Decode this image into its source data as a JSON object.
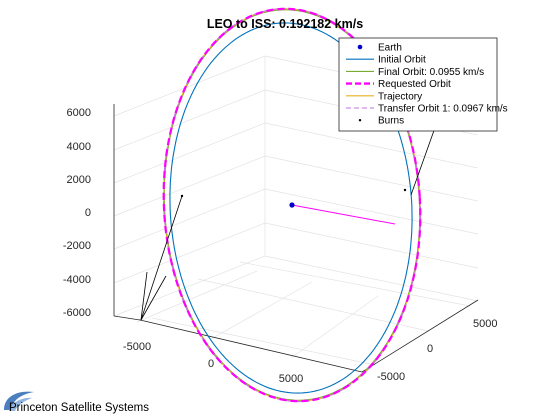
{
  "chart_data": {
    "type": "line",
    "title": "LEO to ISS: 0.192182 km/s",
    "xlim": [
      -8000,
      8000
    ],
    "ylim": [
      -7000,
      7000
    ],
    "zlim": [
      -7000,
      7000
    ],
    "grid": true,
    "box": true,
    "legend_placement": "top-right",
    "x_ticks": [
      "-5000",
      "0",
      "5000"
    ],
    "y_ticks": [
      "-5000",
      "0",
      "5000"
    ],
    "z_ticks": [
      "-6000",
      "-4000",
      "-2000",
      "0",
      "2000",
      "4000",
      "6000"
    ],
    "legend": [
      {
        "label": "Earth",
        "color": "#0000cc",
        "style": "dot"
      },
      {
        "label": "Initial Orbit",
        "color": "#0072bd",
        "style": "solid"
      },
      {
        "label": "Final Orbit: 0.0955 km/s",
        "color": "#77ac30",
        "style": "solid"
      },
      {
        "label": "Requested Orbit",
        "color": "#ff00ff",
        "style": "dashed-thick"
      },
      {
        "label": "Trajectory",
        "color": "#edb120",
        "style": "solid"
      },
      {
        "label": "Transfer Orbit 1: 0.0967 km/s",
        "color": "#c070e0",
        "style": "dashed"
      },
      {
        "label": "Burns",
        "color": "#000000",
        "style": "point"
      }
    ],
    "series": [
      {
        "name": "Earth",
        "points": [
          [
            0,
            0,
            0
          ]
        ]
      },
      {
        "name": "Initial Orbit",
        "radius": 6778
      },
      {
        "name": "Requested Orbit",
        "radius": 6778
      },
      {
        "name": "Final Orbit: 0.0955 km/s",
        "radius": 6778
      },
      {
        "name": "Trajectory",
        "radius": 6778
      },
      {
        "name": "Transfer Orbit 1: 0.0967 km/s",
        "radius": 6778
      }
    ]
  },
  "logo": {
    "text": "Princeton Satellite Systems"
  }
}
